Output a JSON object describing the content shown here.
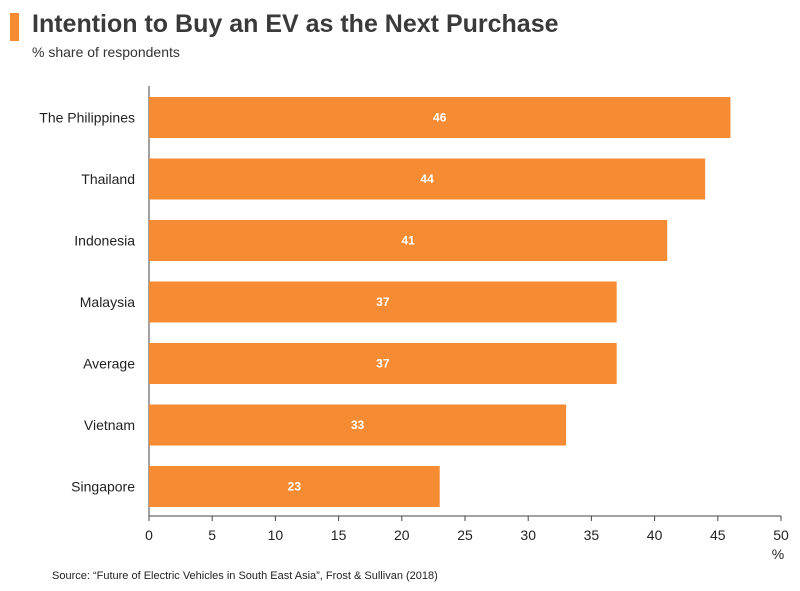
{
  "header": {
    "title": "Intention to Buy an EV as the Next Purchase",
    "subtitle": "% share of respondents"
  },
  "footer": {
    "source": "Source: “Future of Electric Vehicles in South East Asia”, Frost & Sullivan (2018)"
  },
  "colors": {
    "accent": "#f58b33",
    "bar": "#f58b33",
    "axis": "#444444",
    "label_inside": "#ffffff"
  },
  "chart_data": {
    "type": "bar",
    "orientation": "horizontal",
    "title": "Intention to Buy an EV as the Next Purchase",
    "subtitle": "% share of respondents",
    "categories": [
      "The Philippines",
      "Thailand",
      "Indonesia",
      "Malaysia",
      "Average",
      "Vietnam",
      "Singapore"
    ],
    "values": [
      46,
      44,
      41,
      37,
      37,
      33,
      23
    ],
    "xlabel": "%",
    "ylabel": "",
    "xlim": [
      0,
      50
    ],
    "xticks": [
      0,
      5,
      10,
      15,
      20,
      25,
      30,
      35,
      40,
      45,
      50
    ],
    "grid": false,
    "data_labels": true
  }
}
